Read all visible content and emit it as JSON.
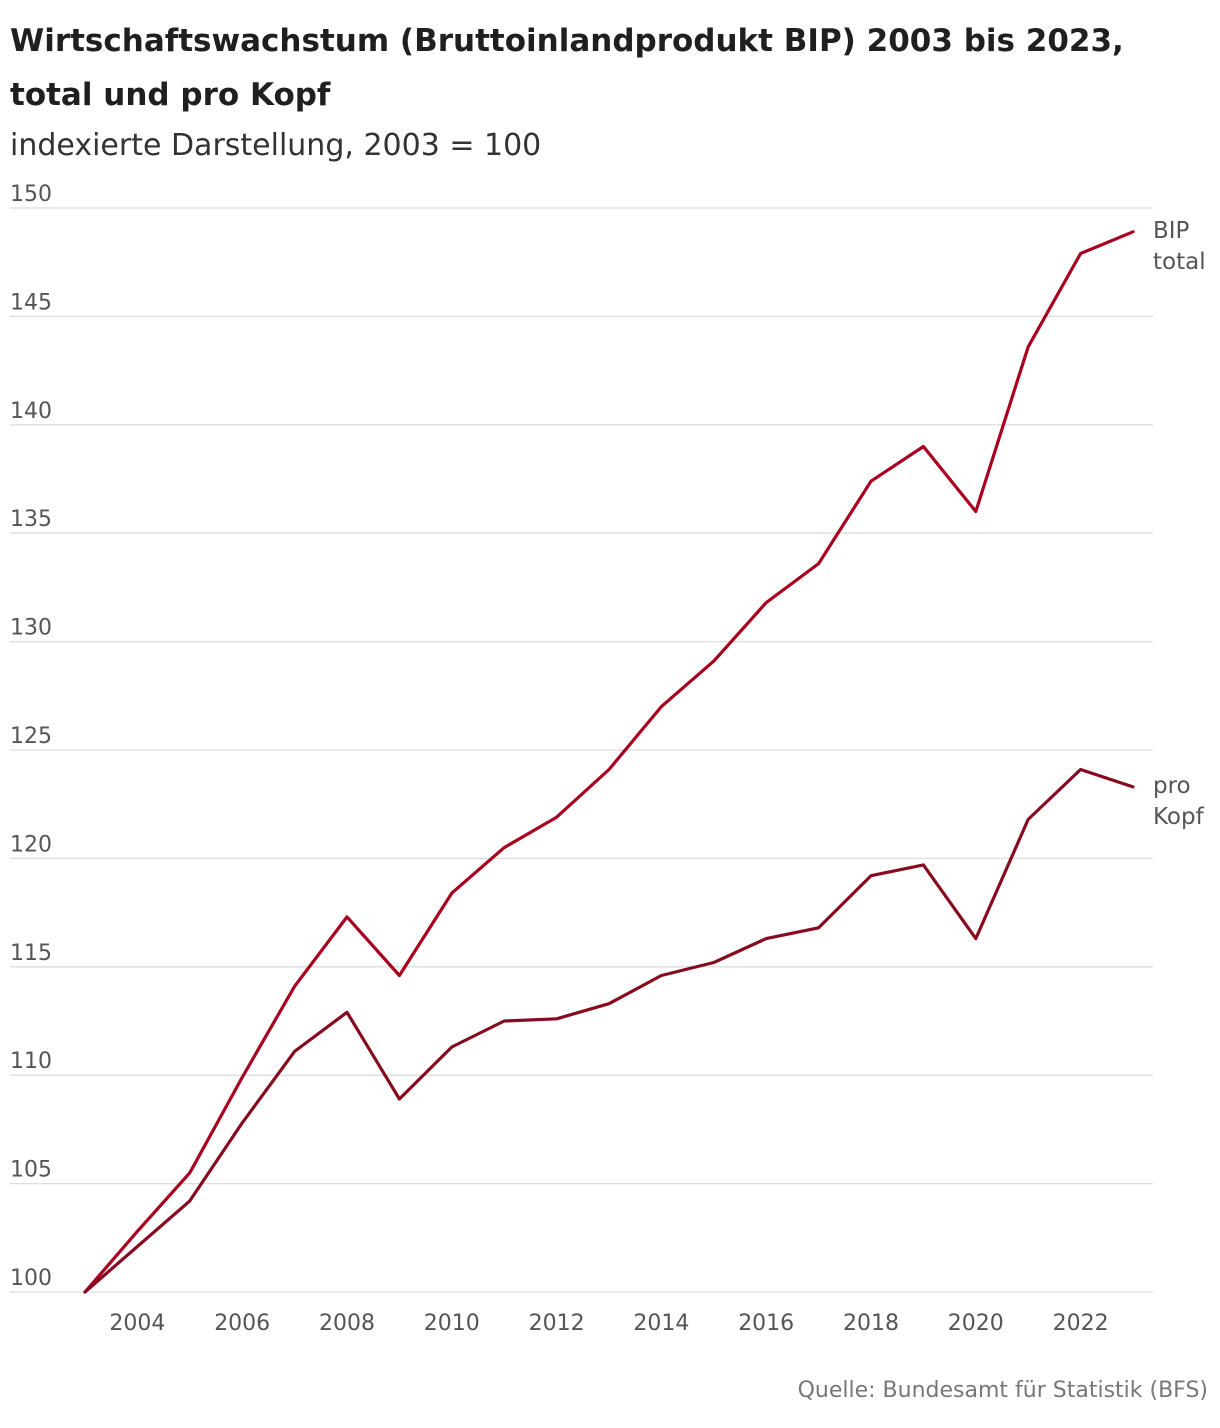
{
  "chart_data": {
    "type": "line",
    "title": "Wirtschaftswachstum (Bruttoinlandprodukt BIP) 2003 bis 2023, total und pro Kopf",
    "subtitle": "indexierte Darstellung, 2003 = 100",
    "x": [
      2003,
      2004,
      2005,
      2006,
      2007,
      2008,
      2009,
      2010,
      2011,
      2012,
      2013,
      2014,
      2015,
      2016,
      2017,
      2018,
      2019,
      2020,
      2021,
      2022,
      2023
    ],
    "series": [
      {
        "name": "BIP total",
        "label_lines": [
          "BIP",
          "total"
        ],
        "color": "#a8001e",
        "values": [
          100,
          102.8,
          105.5,
          109.9,
          114.1,
          117.3,
          114.6,
          118.4,
          120.5,
          121.9,
          124.1,
          127.0,
          129.1,
          131.8,
          133.6,
          137.4,
          139.0,
          136.0,
          143.6,
          147.9,
          148.9
        ]
      },
      {
        "name": "pro Kopf",
        "label_lines": [
          "pro",
          "Kopf"
        ],
        "color": "#870b1f",
        "values": [
          100,
          102.1,
          104.2,
          107.8,
          111.1,
          112.9,
          108.9,
          111.3,
          112.5,
          112.6,
          113.3,
          114.6,
          115.2,
          116.3,
          116.8,
          119.2,
          119.7,
          116.3,
          121.8,
          124.1,
          123.3
        ]
      }
    ],
    "xticks": [
      2004,
      2006,
      2008,
      2010,
      2012,
      2014,
      2016,
      2018,
      2020,
      2022
    ],
    "yticks": [
      100,
      105,
      110,
      115,
      120,
      125,
      130,
      135,
      140,
      145,
      150
    ],
    "xlim": [
      2003,
      2023
    ],
    "ylim": [
      100,
      150
    ],
    "grid": true,
    "xlabel": "",
    "ylabel": "",
    "source": "Quelle: Bundesamt für Statistik (BFS)"
  }
}
